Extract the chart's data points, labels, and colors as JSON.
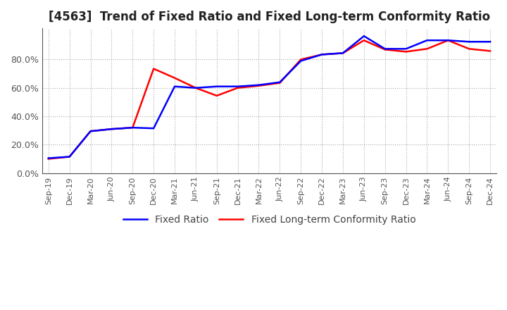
{
  "title": "[4563]  Trend of Fixed Ratio and Fixed Long-term Conformity Ratio",
  "x_labels": [
    "Sep-19",
    "Dec-19",
    "Mar-20",
    "Jun-20",
    "Sep-20",
    "Dec-20",
    "Mar-21",
    "Jun-21",
    "Sep-21",
    "Dec-21",
    "Mar-22",
    "Jun-22",
    "Sep-22",
    "Dec-22",
    "Mar-23",
    "Jun-23",
    "Sep-23",
    "Dec-23",
    "Mar-24",
    "Jun-24",
    "Sep-24",
    "Dec-24"
  ],
  "fixed_ratio": [
    0.105,
    0.115,
    0.295,
    0.31,
    0.32,
    0.315,
    0.61,
    0.6,
    0.61,
    0.61,
    0.62,
    0.64,
    0.79,
    0.835,
    0.845,
    0.965,
    0.875,
    0.875,
    0.935,
    0.935,
    0.925,
    0.925
  ],
  "fixed_longterm_ratio": [
    0.1,
    0.115,
    0.295,
    0.31,
    0.32,
    0.735,
    0.67,
    0.6,
    0.545,
    0.6,
    0.615,
    0.635,
    0.8,
    0.835,
    0.845,
    0.935,
    0.87,
    0.855,
    0.875,
    0.935,
    0.875,
    0.86
  ],
  "fixed_ratio_color": "#0000ff",
  "fixed_longterm_color": "#ff0000",
  "ylim": [
    0.0,
    1.02
  ],
  "yticks": [
    0.0,
    0.2,
    0.4,
    0.6,
    0.8
  ],
  "ytick_labels": [
    "0.0%",
    "20.0%",
    "40.0%",
    "60.0%",
    "80.0%"
  ],
  "background_color": "#ffffff",
  "plot_bg_color": "#ffffff",
  "grid_color": "#aaaaaa",
  "legend_fixed_ratio": "Fixed Ratio",
  "legend_fixed_longterm": "Fixed Long-term Conformity Ratio",
  "title_fontsize": 12,
  "linewidth": 1.8
}
